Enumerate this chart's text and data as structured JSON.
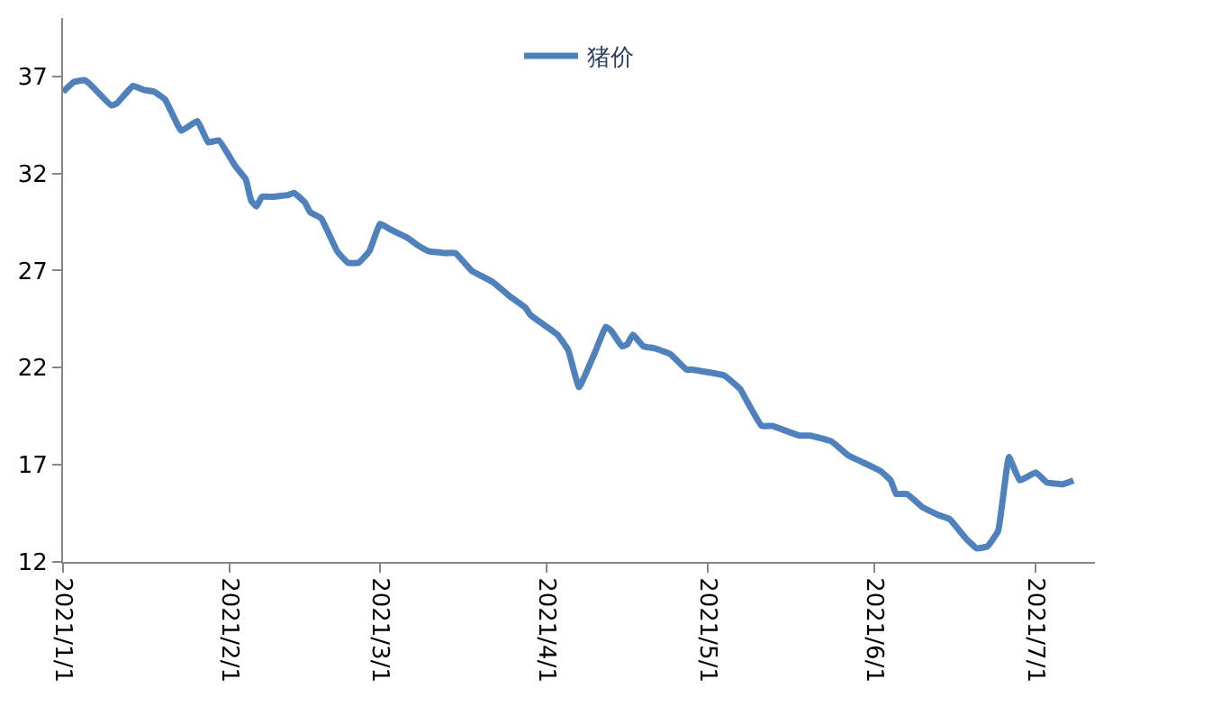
{
  "chart_data": {
    "type": "line",
    "legend": "top",
    "marker": "none",
    "line_style": "solid",
    "xlim": [
      "2021-01-01",
      "2021-07-12"
    ],
    "xticks": [
      {
        "value": "2021-01-01",
        "label": "2021/1/1"
      },
      {
        "value": "2021-02-01",
        "label": "2021/2/1"
      },
      {
        "value": "2021-03-01",
        "label": "2021/3/1"
      },
      {
        "value": "2021-04-01",
        "label": "2021/4/1"
      },
      {
        "value": "2021-05-01",
        "label": "2021/5/1"
      },
      {
        "value": "2021-06-01",
        "label": "2021/6/1"
      },
      {
        "value": "2021-07-01",
        "label": "2021/7/1"
      }
    ],
    "ylim": [
      12,
      40
    ],
    "yticks": [
      12,
      17,
      22,
      27,
      32,
      37
    ],
    "x": [
      "2021-01-01",
      "2021-01-03",
      "2021-01-05",
      "2021-01-06",
      "2021-01-10",
      "2021-01-11",
      "2021-01-14",
      "2021-01-16",
      "2021-01-18",
      "2021-01-20",
      "2021-01-23",
      "2021-01-26",
      "2021-01-28",
      "2021-01-30",
      "2021-02-02",
      "2021-02-04",
      "2021-02-05",
      "2021-02-06",
      "2021-02-07",
      "2021-02-09",
      "2021-02-12",
      "2021-02-13",
      "2021-02-15",
      "2021-02-16",
      "2021-02-18",
      "2021-02-21",
      "2021-02-23",
      "2021-02-25",
      "2021-02-27",
      "2021-03-01",
      "2021-03-03",
      "2021-03-06",
      "2021-03-08",
      "2021-03-10",
      "2021-03-13",
      "2021-03-15",
      "2021-03-18",
      "2021-03-22",
      "2021-03-25",
      "2021-03-28",
      "2021-03-29",
      "2021-03-31",
      "2021-04-03",
      "2021-04-05",
      "2021-04-07",
      "2021-04-10",
      "2021-04-12",
      "2021-04-13",
      "2021-04-15",
      "2021-04-16",
      "2021-04-17",
      "2021-04-19",
      "2021-04-21",
      "2021-04-24",
      "2021-04-27",
      "2021-04-28",
      "2021-05-04",
      "2021-05-07",
      "2021-05-08",
      "2021-05-11",
      "2021-05-13",
      "2021-05-18",
      "2021-05-20",
      "2021-05-24",
      "2021-05-27",
      "2021-05-30",
      "2021-06-02",
      "2021-06-04",
      "2021-06-05",
      "2021-06-07",
      "2021-06-10",
      "2021-06-13",
      "2021-06-15",
      "2021-06-18",
      "2021-06-20",
      "2021-06-22",
      "2021-06-24",
      "2021-06-26",
      "2021-06-28",
      "2021-07-01",
      "2021-07-03",
      "2021-07-06",
      "2021-07-08"
    ],
    "series": [
      {
        "name": "猪价",
        "color": "#4f81bd",
        "values": [
          36.2,
          36.7,
          36.8,
          36.6,
          35.5,
          35.6,
          36.5,
          36.3,
          36.2,
          35.8,
          34.2,
          34.7,
          33.6,
          33.7,
          32.4,
          31.7,
          30.6,
          30.3,
          30.8,
          30.8,
          30.9,
          31.0,
          30.5,
          30.0,
          29.7,
          28.0,
          27.4,
          27.4,
          28.0,
          29.4,
          29.1,
          28.7,
          28.3,
          28.0,
          27.9,
          27.9,
          27.0,
          26.4,
          25.7,
          25.1,
          24.7,
          24.3,
          23.7,
          22.9,
          21.0,
          22.8,
          24.1,
          23.9,
          23.1,
          23.2,
          23.7,
          23.1,
          23.0,
          22.7,
          21.9,
          21.9,
          21.6,
          20.9,
          20.4,
          19.0,
          19.0,
          18.5,
          18.5,
          18.2,
          17.5,
          17.1,
          16.7,
          16.2,
          15.5,
          15.5,
          14.8,
          14.4,
          14.2,
          13.2,
          12.7,
          12.8,
          13.6,
          17.4,
          16.2,
          16.6,
          16.1,
          16.0,
          16.2
        ]
      }
    ]
  }
}
